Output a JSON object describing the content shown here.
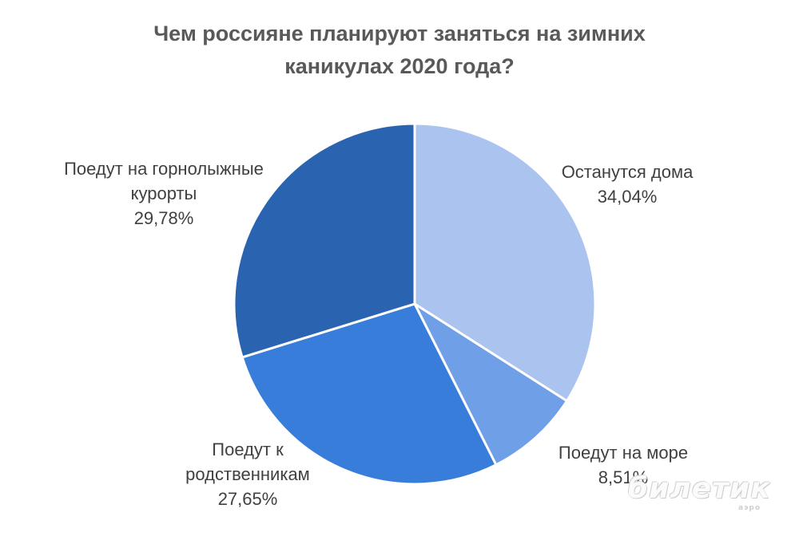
{
  "chart_data": {
    "type": "pie",
    "title_lines": [
      "Чем россияне планируют заняться на зимних",
      "каникулах 2020 года?"
    ],
    "slices": [
      {
        "label_lines": [
          "Останутся дома"
        ],
        "value": 34.04,
        "value_label": "34,04%",
        "color": "#abc3ef"
      },
      {
        "label_lines": [
          "Поедут на море"
        ],
        "value": 8.51,
        "value_label": "8,51%",
        "color": "#6f9fe6"
      },
      {
        "label_lines": [
          "Поедут к",
          "родственникам"
        ],
        "value": 27.65,
        "value_label": "27,65%",
        "color": "#377dd9"
      },
      {
        "label_lines": [
          "Поедут на горнолыжные",
          "курорты"
        ],
        "value": 29.78,
        "value_label": "29,78%",
        "color": "#2a64b0"
      }
    ],
    "start_direction": "top",
    "direction": "clockwise",
    "legend": "none"
  },
  "watermark": {
    "brand": "билетик",
    "suffix": "аэро"
  }
}
